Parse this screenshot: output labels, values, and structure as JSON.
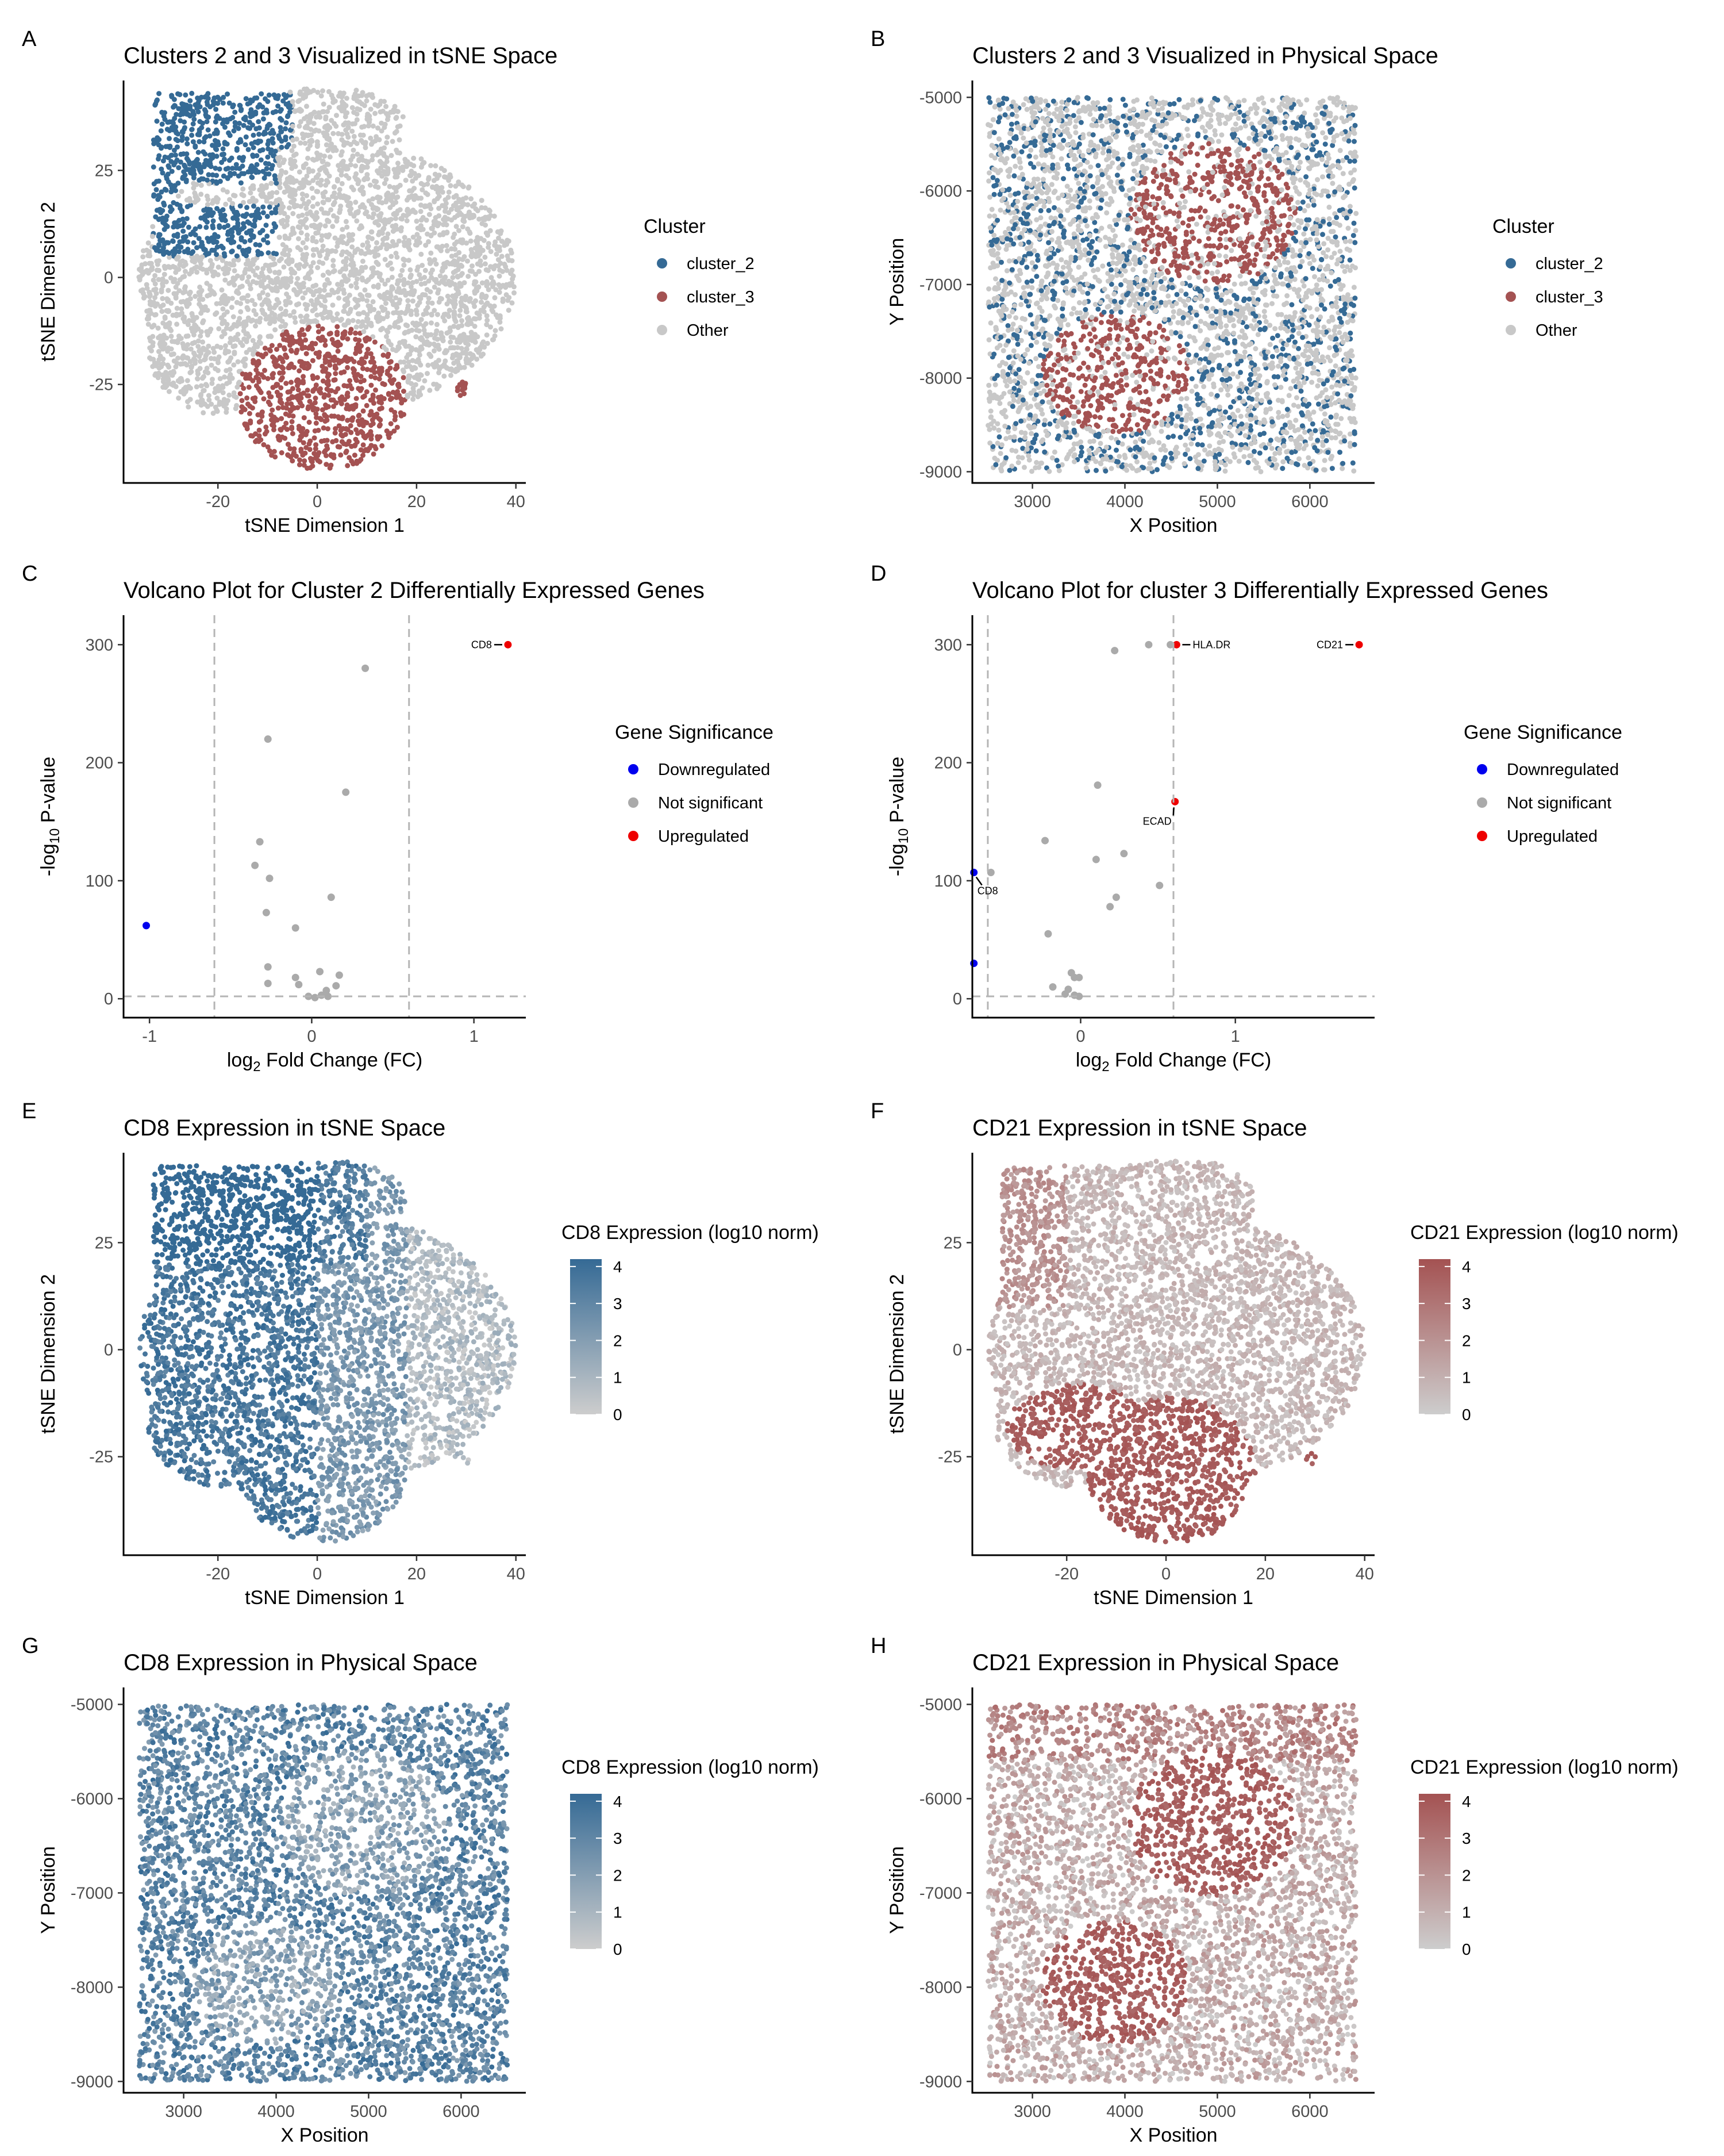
{
  "colors": {
    "cluster_2": "#356a95",
    "cluster_3": "#a45252",
    "other": "#c8c8c8",
    "down": "#0000ee",
    "up": "#ee0000",
    "ns": "#aaaaaa",
    "cd8_high": "#356a95",
    "cd21_high": "#a45252",
    "low": "#cdcdcd"
  },
  "chart_data": [
    {
      "panel": "A",
      "type": "scatter",
      "title": "Clusters 2 and 3 Visualized in tSNE Space",
      "xlabel": "tSNE Dimension 1",
      "ylabel": "tSNE Dimension 2",
      "xlim": [
        -39,
        42
      ],
      "ylim": [
        -48,
        46
      ],
      "xticks": [
        -20,
        0,
        20,
        40
      ],
      "yticks": [
        -25,
        0,
        25
      ],
      "legend": {
        "title": "Cluster",
        "items": [
          "cluster_2",
          "cluster_3",
          "Other"
        ],
        "position": "right"
      },
      "regions": [
        {
          "label": "cluster_2",
          "shape": "upper-left blob",
          "x_range": [
            -33,
            -5
          ],
          "y_range": [
            5,
            42
          ]
        },
        {
          "label": "cluster_3",
          "shape": "lower-center blob",
          "x_range": [
            -15,
            18
          ],
          "y_range": [
            -45,
            -10
          ]
        },
        {
          "label": "cluster_3",
          "shape": "small island",
          "center": [
            29,
            -26
          ]
        },
        {
          "label": "Other",
          "shape": "remaining cloud",
          "x_range": [
            -35,
            40
          ],
          "y_range": [
            -30,
            44
          ]
        }
      ]
    },
    {
      "panel": "B",
      "type": "scatter",
      "title": "Clusters 2 and 3 Visualized in Physical Space",
      "xlabel": "X Position",
      "ylabel": "Y Position",
      "xlim": [
        2350,
        6700
      ],
      "ylim": [
        -9120,
        -4820
      ],
      "xticks": [
        3000,
        4000,
        5000,
        6000
      ],
      "yticks": [
        -5000,
        -6000,
        -7000,
        -8000,
        -9000
      ],
      "legend": {
        "title": "Cluster",
        "items": [
          "cluster_2",
          "cluster_3",
          "Other"
        ],
        "position": "right"
      },
      "regions": [
        {
          "label": "cluster_3",
          "shape": "upper-right blob",
          "center": [
            4950,
            -6200
          ]
        },
        {
          "label": "cluster_3",
          "shape": "lower-left blob",
          "center": [
            3900,
            -7950
          ]
        },
        {
          "label": "cluster_2",
          "shape": "scattered",
          "x_range": [
            2500,
            6500
          ],
          "y_range": [
            -9000,
            -5000
          ]
        }
      ]
    },
    {
      "panel": "C",
      "type": "scatter",
      "title": "Volcano Plot for Cluster 2 Differentially Expressed Genes",
      "xlabel": "log2 Fold Change (FC)",
      "ylabel": "-log10 P-value",
      "xlim": [
        -1.16,
        1.32
      ],
      "ylim": [
        -16,
        325
      ],
      "xticks": [
        -1,
        0,
        1
      ],
      "yticks": [
        0,
        100,
        200,
        300
      ],
      "thresholds": {
        "fc": [
          -0.6,
          0.6
        ],
        "p": 2
      },
      "legend": {
        "title": "Gene Significance",
        "items": [
          "Downregulated",
          "Not significant",
          "Upregulated"
        ],
        "position": "right"
      },
      "points": [
        {
          "x": 1.21,
          "y": 300,
          "sig": "up",
          "label": "CD8"
        },
        {
          "x": -1.02,
          "y": 62,
          "sig": "down"
        },
        {
          "x": 0.33,
          "y": 280,
          "sig": "ns"
        },
        {
          "x": -0.27,
          "y": 220,
          "sig": "ns"
        },
        {
          "x": 0.21,
          "y": 175,
          "sig": "ns"
        },
        {
          "x": -0.32,
          "y": 133,
          "sig": "ns"
        },
        {
          "x": -0.35,
          "y": 113,
          "sig": "ns"
        },
        {
          "x": -0.26,
          "y": 102,
          "sig": "ns"
        },
        {
          "x": 0.12,
          "y": 86,
          "sig": "ns"
        },
        {
          "x": -0.28,
          "y": 73,
          "sig": "ns"
        },
        {
          "x": -0.1,
          "y": 60,
          "sig": "ns"
        },
        {
          "x": -0.27,
          "y": 27,
          "sig": "ns"
        },
        {
          "x": -0.27,
          "y": 13,
          "sig": "ns"
        },
        {
          "x": -0.1,
          "y": 18,
          "sig": "ns"
        },
        {
          "x": -0.08,
          "y": 12,
          "sig": "ns"
        },
        {
          "x": 0.05,
          "y": 23,
          "sig": "ns"
        },
        {
          "x": 0.17,
          "y": 20,
          "sig": "ns"
        },
        {
          "x": 0.15,
          "y": 11,
          "sig": "ns"
        },
        {
          "x": 0.09,
          "y": 7,
          "sig": "ns"
        },
        {
          "x": 0.06,
          "y": 3,
          "sig": "ns"
        },
        {
          "x": 0.02,
          "y": 1,
          "sig": "ns"
        },
        {
          "x": -0.02,
          "y": 2,
          "sig": "ns"
        },
        {
          "x": 0.1,
          "y": 2,
          "sig": "ns"
        }
      ]
    },
    {
      "panel": "D",
      "type": "scatter",
      "title": "Volcano Plot for cluster 3 Differentially Expressed Genes",
      "xlabel": "log2 Fold Change (FC)",
      "ylabel": "-log10 P-value",
      "xlim": [
        -0.7,
        1.9
      ],
      "ylim": [
        -16,
        325
      ],
      "xticks": [
        0,
        1
      ],
      "yticks": [
        0,
        100,
        200,
        300
      ],
      "thresholds": {
        "fc": [
          -0.6,
          0.6
        ],
        "p": 2
      },
      "legend": {
        "title": "Gene Significance",
        "items": [
          "Downregulated",
          "Not significant",
          "Upregulated"
        ],
        "position": "right"
      },
      "points": [
        {
          "x": 1.8,
          "y": 300,
          "sig": "up",
          "label": "CD21"
        },
        {
          "x": 0.62,
          "y": 300,
          "sig": "up",
          "label": "HLA.DR"
        },
        {
          "x": 0.61,
          "y": 167,
          "sig": "up",
          "label": "ECAD"
        },
        {
          "x": -0.69,
          "y": 107,
          "sig": "down",
          "label": "CD8"
        },
        {
          "x": -0.69,
          "y": 30,
          "sig": "down"
        },
        {
          "x": 0.22,
          "y": 295,
          "sig": "ns"
        },
        {
          "x": 0.44,
          "y": 300,
          "sig": "ns"
        },
        {
          "x": 0.58,
          "y": 300,
          "sig": "ns"
        },
        {
          "x": 0.11,
          "y": 181,
          "sig": "ns"
        },
        {
          "x": -0.23,
          "y": 134,
          "sig": "ns"
        },
        {
          "x": 0.28,
          "y": 123,
          "sig": "ns"
        },
        {
          "x": 0.1,
          "y": 118,
          "sig": "ns"
        },
        {
          "x": -0.58,
          "y": 107,
          "sig": "ns"
        },
        {
          "x": 0.51,
          "y": 96,
          "sig": "ns"
        },
        {
          "x": 0.23,
          "y": 86,
          "sig": "ns"
        },
        {
          "x": 0.19,
          "y": 78,
          "sig": "ns"
        },
        {
          "x": -0.21,
          "y": 55,
          "sig": "ns"
        },
        {
          "x": -0.06,
          "y": 22,
          "sig": "ns"
        },
        {
          "x": -0.04,
          "y": 18,
          "sig": "ns"
        },
        {
          "x": -0.01,
          "y": 18,
          "sig": "ns"
        },
        {
          "x": -0.18,
          "y": 10,
          "sig": "ns"
        },
        {
          "x": -0.08,
          "y": 8,
          "sig": "ns"
        },
        {
          "x": -0.1,
          "y": 4,
          "sig": "ns"
        },
        {
          "x": -0.04,
          "y": 3,
          "sig": "ns"
        },
        {
          "x": -0.01,
          "y": 2,
          "sig": "ns"
        }
      ]
    },
    {
      "panel": "E",
      "type": "scatter",
      "title": "CD8 Expression in tSNE Space",
      "xlabel": "tSNE Dimension 1",
      "ylabel": "tSNE Dimension 2",
      "xlim": [
        -39,
        42
      ],
      "ylim": [
        -48,
        46
      ],
      "xticks": [
        -20,
        0,
        20,
        40
      ],
      "yticks": [
        -25,
        0,
        25
      ],
      "colorbar": {
        "title": "CD8 Expression (log10 norm)",
        "range": [
          0,
          4.2
        ],
        "ticks": [
          0,
          1,
          2,
          3,
          4
        ],
        "low": "#cdcdcd",
        "high": "#356a95"
      }
    },
    {
      "panel": "F",
      "type": "scatter",
      "title": "CD21 Expression in tSNE Space",
      "xlabel": "tSNE Dimension 1",
      "ylabel": "tSNE Dimension 2",
      "xlim": [
        -39,
        42
      ],
      "ylim": [
        -48,
        46
      ],
      "xticks": [
        -20,
        0,
        20,
        40
      ],
      "yticks": [
        -25,
        0,
        25
      ],
      "colorbar": {
        "title": "CD21 Expression (log10 norm)",
        "range": [
          0,
          4.2
        ],
        "ticks": [
          0,
          1,
          2,
          3,
          4
        ],
        "low": "#cdcdcd",
        "high": "#a45252"
      }
    },
    {
      "panel": "G",
      "type": "scatter",
      "title": "CD8 Expression in Physical Space",
      "xlabel": "X Position",
      "ylabel": "Y Position",
      "xlim": [
        2350,
        6700
      ],
      "ylim": [
        -9120,
        -4820
      ],
      "xticks": [
        3000,
        4000,
        5000,
        6000
      ],
      "yticks": [
        -5000,
        -6000,
        -7000,
        -8000,
        -9000
      ],
      "colorbar": {
        "title": "CD8 Expression (log10 norm)",
        "range": [
          0,
          4.2
        ],
        "ticks": [
          0,
          1,
          2,
          3,
          4
        ],
        "low": "#cdcdcd",
        "high": "#356a95"
      }
    },
    {
      "panel": "H",
      "type": "scatter",
      "title": "CD21 Expression in Physical Space",
      "xlabel": "X Position",
      "ylabel": "Y Position",
      "xlim": [
        2350,
        6700
      ],
      "ylim": [
        -9120,
        -4820
      ],
      "xticks": [
        3000,
        4000,
        5000,
        6000
      ],
      "yticks": [
        -5000,
        -6000,
        -7000,
        -8000,
        -9000
      ],
      "colorbar": {
        "title": "CD21 Expression (log10 norm)",
        "range": [
          0,
          4.2
        ],
        "ticks": [
          0,
          1,
          2,
          3,
          4
        ],
        "low": "#cdcdcd",
        "high": "#a45252"
      }
    }
  ]
}
